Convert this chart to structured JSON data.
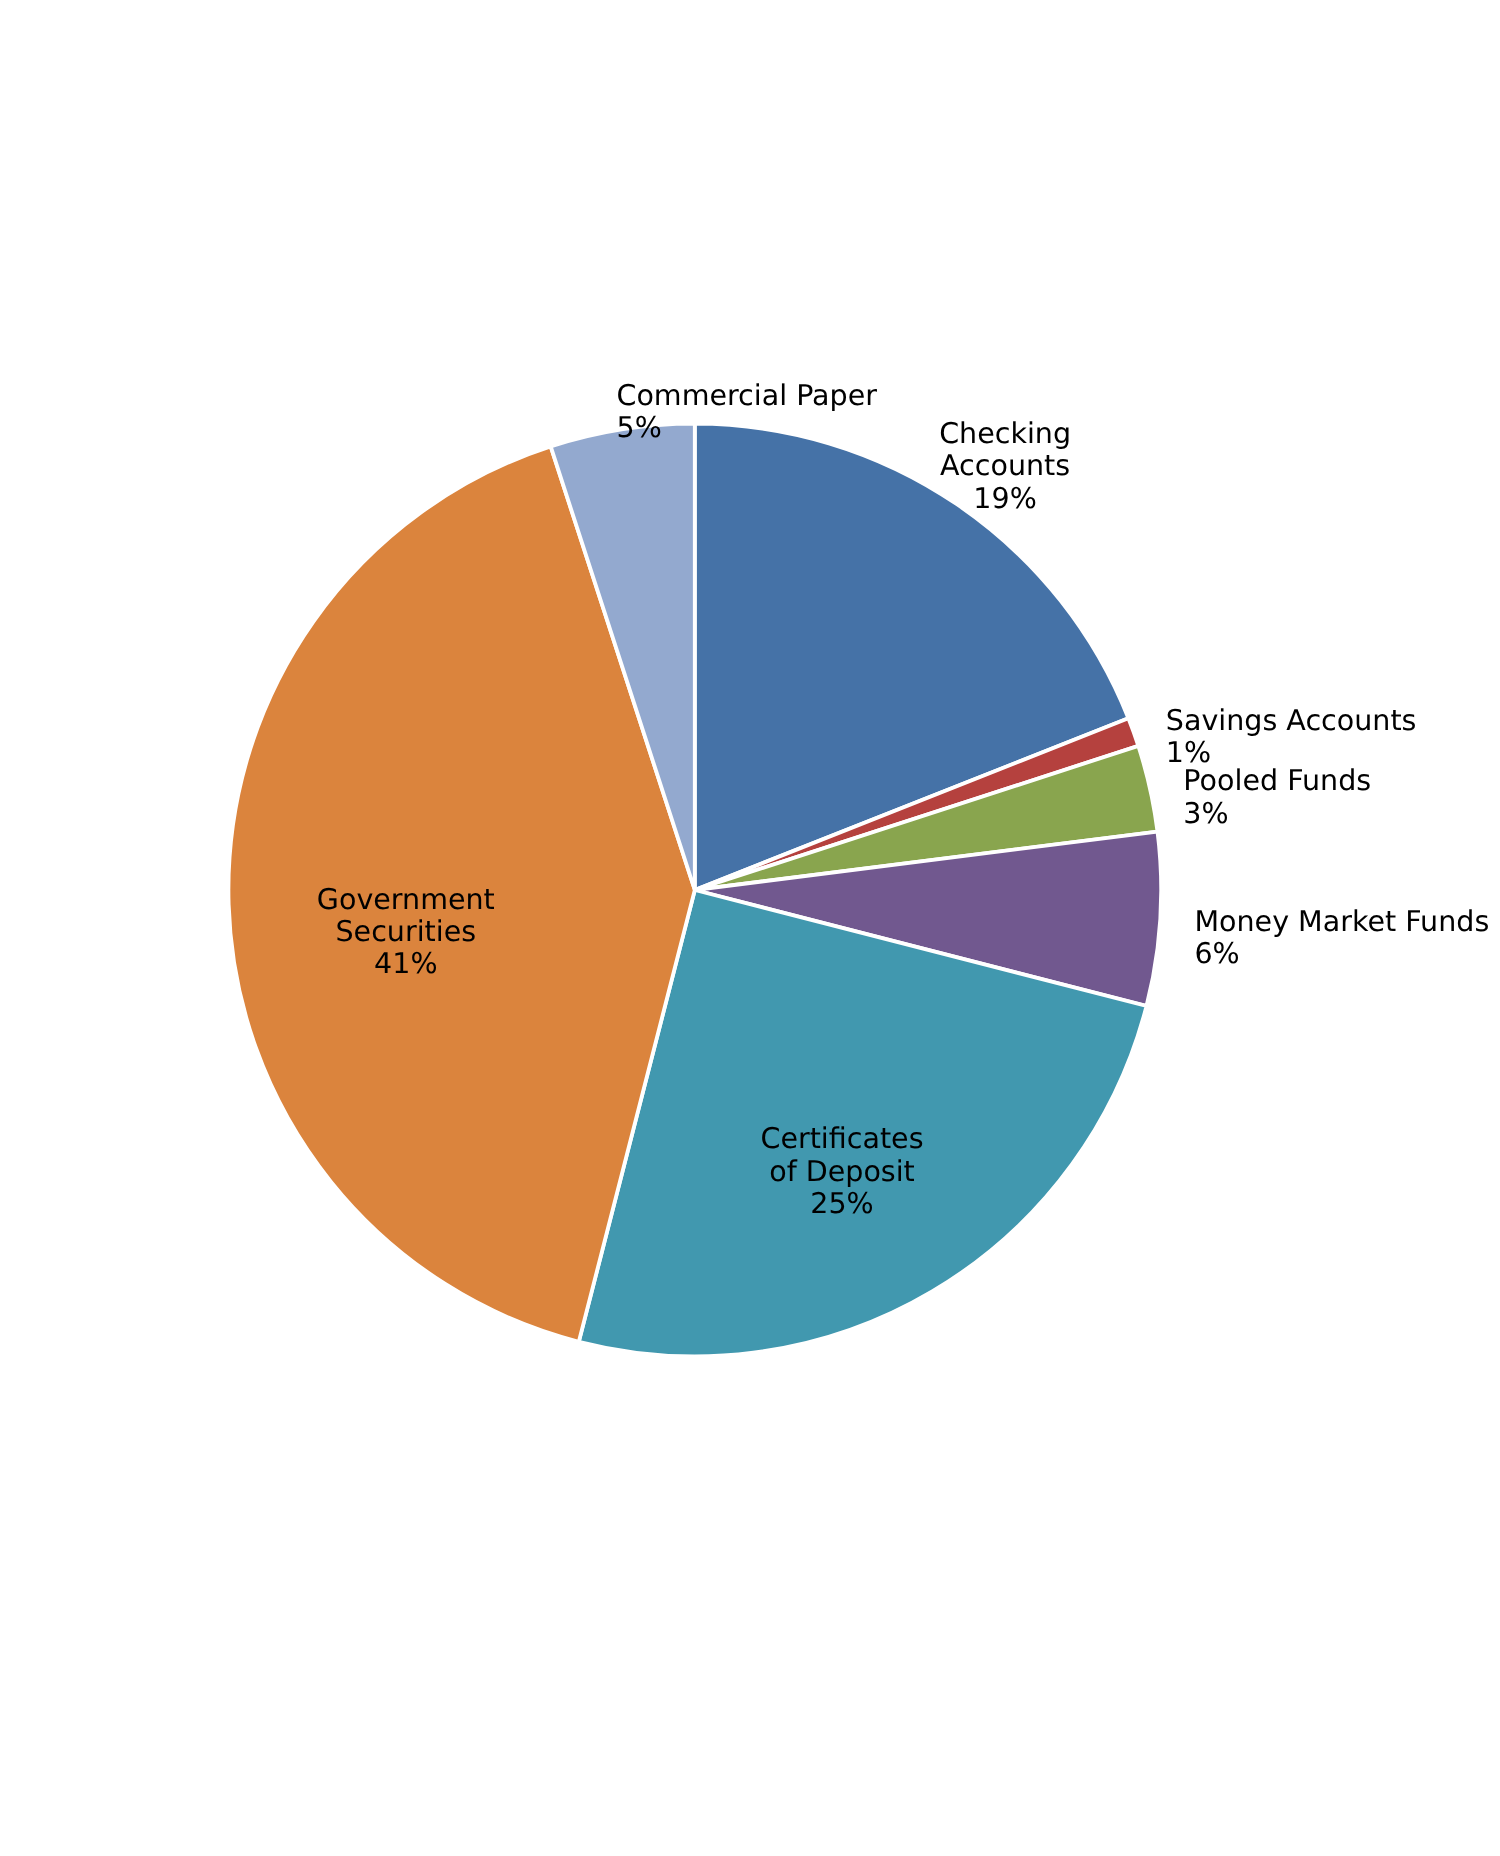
{
  "chart_data": {
    "type": "pie",
    "categories": [
      "Checking Accounts",
      "Savings Accounts",
      "Pooled Funds",
      "Money Market Funds",
      "Certificates of Deposit",
      "Government Securities",
      "Commercial Paper"
    ],
    "values": [
      19,
      1,
      3,
      6,
      25,
      41,
      5
    ],
    "value_labels": [
      "19%",
      "1%",
      "3%",
      "6%",
      "25%",
      "41%",
      "5%"
    ],
    "colors": [
      "#4572a7",
      "#b5413e",
      "#89a54e",
      "#71588f",
      "#4198af",
      "#db843d",
      "#93a9cf"
    ],
    "legend": false
  }
}
